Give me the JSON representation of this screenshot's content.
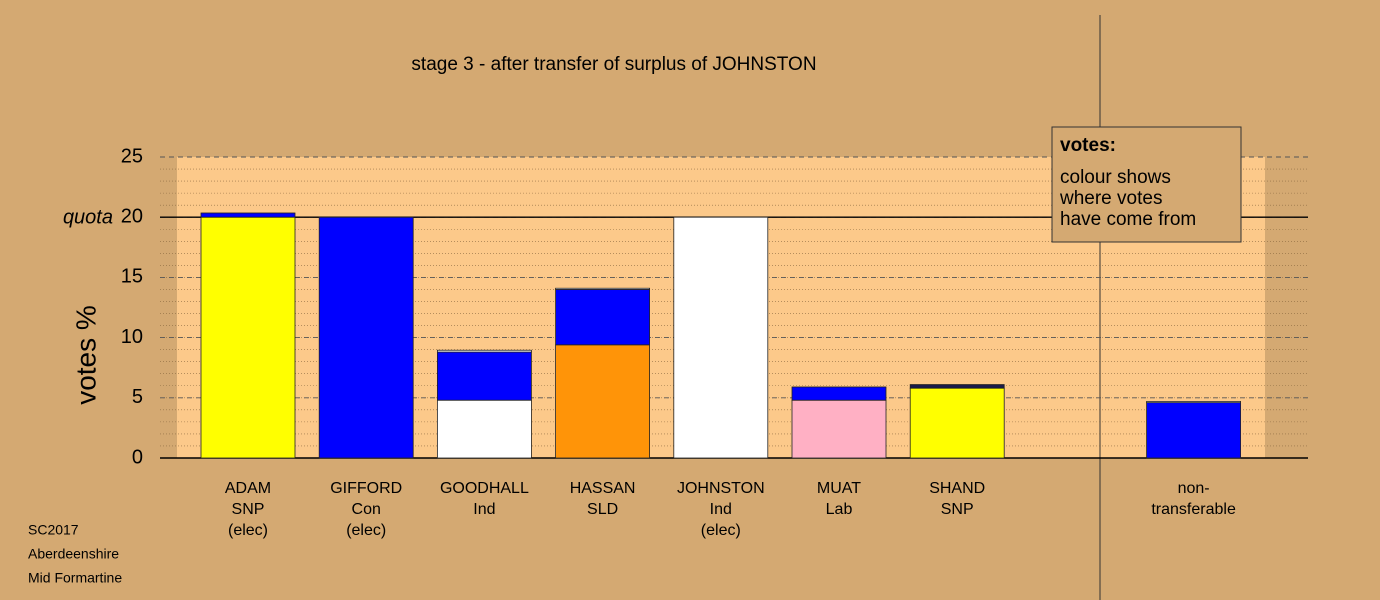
{
  "chart_data": {
    "type": "stacked_bar",
    "title": "stage 3 - after transfer of surplus of JOHNSTON",
    "y_label": "votes %",
    "quota_label": "quota",
    "quota": 20,
    "ylim": [
      0,
      25
    ],
    "yticks": [
      0,
      5,
      10,
      15,
      20,
      25
    ],
    "minor_step": 1,
    "grid": true,
    "bars": [
      {
        "label": [
          "ADAM",
          "SNP",
          "(elec)"
        ],
        "segments": [
          {
            "color": "#ffff00",
            "value": 20
          },
          {
            "color": "#0000ff",
            "value": 0.35
          }
        ]
      },
      {
        "label": [
          "GIFFORD",
          "Con",
          "(elec)"
        ],
        "segments": [
          {
            "color": "#0000ff",
            "value": 20
          }
        ]
      },
      {
        "label": [
          "GOODHALL",
          "Ind"
        ],
        "segments": [
          {
            "color": "#ffffff",
            "value": 4.8
          },
          {
            "color": "#0000ff",
            "value": 4.0
          },
          {
            "color": "#ffffff",
            "value": 0.15
          }
        ]
      },
      {
        "label": [
          "HASSAN",
          "SLD"
        ],
        "segments": [
          {
            "color": "#ff9408",
            "value": 9.4
          },
          {
            "color": "#0000ff",
            "value": 4.6
          },
          {
            "color": "#ffffff",
            "value": 0.1
          }
        ]
      },
      {
        "label": [
          "JOHNSTON",
          "Ind",
          "(elec)"
        ],
        "segments": [
          {
            "color": "#ffffff",
            "value": 20
          }
        ]
      },
      {
        "label": [
          "MUAT",
          "Lab"
        ],
        "segments": [
          {
            "color": "#ffb0c4",
            "value": 4.8
          },
          {
            "color": "#0000ff",
            "value": 1.1
          }
        ]
      },
      {
        "label": [
          "SHAND",
          "SNP"
        ],
        "segments": [
          {
            "color": "#ffff00",
            "value": 5.8
          },
          {
            "color": "#1a1a4a",
            "value": 0.3
          }
        ]
      },
      {
        "label": null,
        "segments": []
      },
      {
        "label": [
          "non-",
          "transferable"
        ],
        "segments": [
          {
            "color": "#0000ff",
            "value": 4.6
          },
          {
            "color": "#ffffff",
            "value": 0.1
          }
        ]
      }
    ],
    "legend_title": "votes:",
    "legend_text": [
      "colour shows",
      "where votes",
      "have come from"
    ],
    "footnote": [
      "SC2017",
      "Aberdeenshire",
      "Mid Formartine"
    ]
  }
}
